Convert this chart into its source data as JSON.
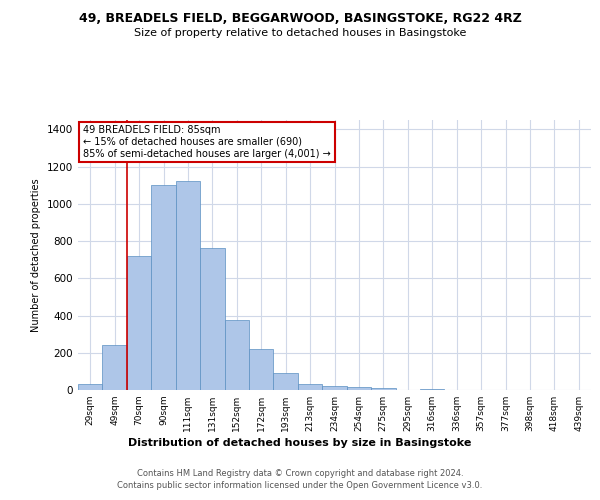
{
  "title": "49, BREADELS FIELD, BEGGARWOOD, BASINGSTOKE, RG22 4RZ",
  "subtitle": "Size of property relative to detached houses in Basingstoke",
  "xlabel": "Distribution of detached houses by size in Basingstoke",
  "ylabel": "Number of detached properties",
  "categories": [
    "29sqm",
    "49sqm",
    "70sqm",
    "90sqm",
    "111sqm",
    "131sqm",
    "152sqm",
    "172sqm",
    "193sqm",
    "213sqm",
    "234sqm",
    "254sqm",
    "275sqm",
    "295sqm",
    "316sqm",
    "336sqm",
    "357sqm",
    "377sqm",
    "398sqm",
    "418sqm",
    "439sqm"
  ],
  "values": [
    30,
    240,
    720,
    1100,
    1120,
    760,
    375,
    220,
    90,
    30,
    20,
    18,
    10,
    0,
    8,
    0,
    0,
    0,
    0,
    0,
    0
  ],
  "bar_color": "#aec6e8",
  "bar_edge_color": "#5a8fc2",
  "background_color": "#ffffff",
  "grid_color": "#d0d8e8",
  "annotation_line1": "49 BREADELS FIELD: 85sqm",
  "annotation_line2": "← 15% of detached houses are smaller (690)",
  "annotation_line3": "85% of semi-detached houses are larger (4,001) →",
  "annotation_box_color": "#ffffff",
  "annotation_box_edge_color": "#cc0000",
  "red_line_x": 1.5,
  "ylim": [
    0,
    1450
  ],
  "yticks": [
    0,
    200,
    400,
    600,
    800,
    1000,
    1200,
    1400
  ],
  "footer_line1": "Contains HM Land Registry data © Crown copyright and database right 2024.",
  "footer_line2": "Contains public sector information licensed under the Open Government Licence v3.0."
}
